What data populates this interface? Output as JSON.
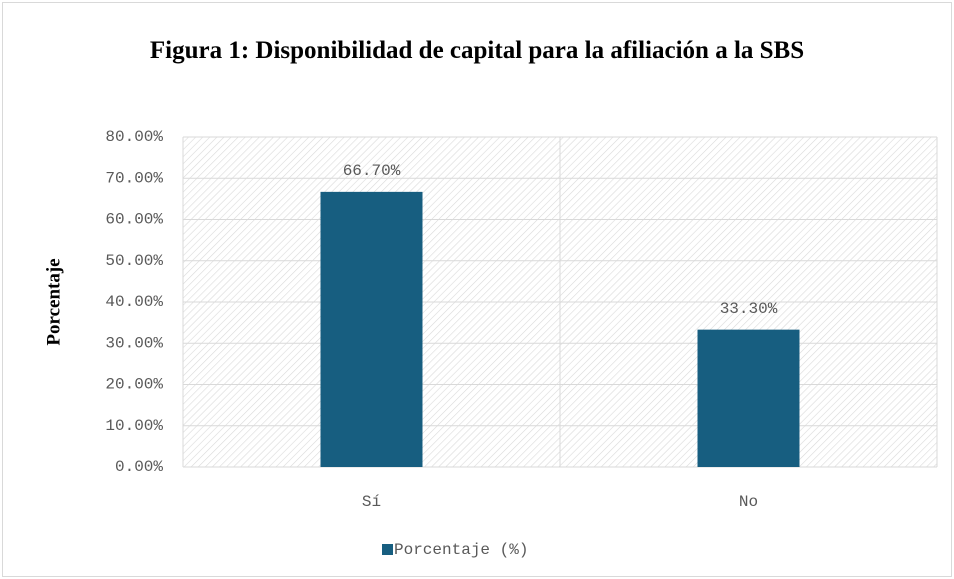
{
  "chart_data": {
    "type": "bar",
    "title": "Figura 1: Disponibilidad de capital para la afiliación a la SBS",
    "y_label": "Porcentaje",
    "categories": [
      "Sí",
      "No"
    ],
    "series": [
      {
        "name": "Porcentaje (%)",
        "color": "#175e80",
        "values": [
          66.7,
          33.3
        ],
        "value_labels": [
          "66.70%",
          "33.30%"
        ]
      }
    ],
    "ylim": [
      0,
      80
    ],
    "yticks": [
      {
        "value": 0,
        "label": "0.00%"
      },
      {
        "value": 10,
        "label": "10.00%"
      },
      {
        "value": 20,
        "label": "20.00%"
      },
      {
        "value": 30,
        "label": "30.00%"
      },
      {
        "value": 40,
        "label": "40.00%"
      },
      {
        "value": 50,
        "label": "50.00%"
      },
      {
        "value": 60,
        "label": "60.00%"
      },
      {
        "value": 70,
        "label": "70.00%"
      },
      {
        "value": 80,
        "label": "80.00%"
      }
    ],
    "grid": true,
    "legend": "bottom"
  }
}
